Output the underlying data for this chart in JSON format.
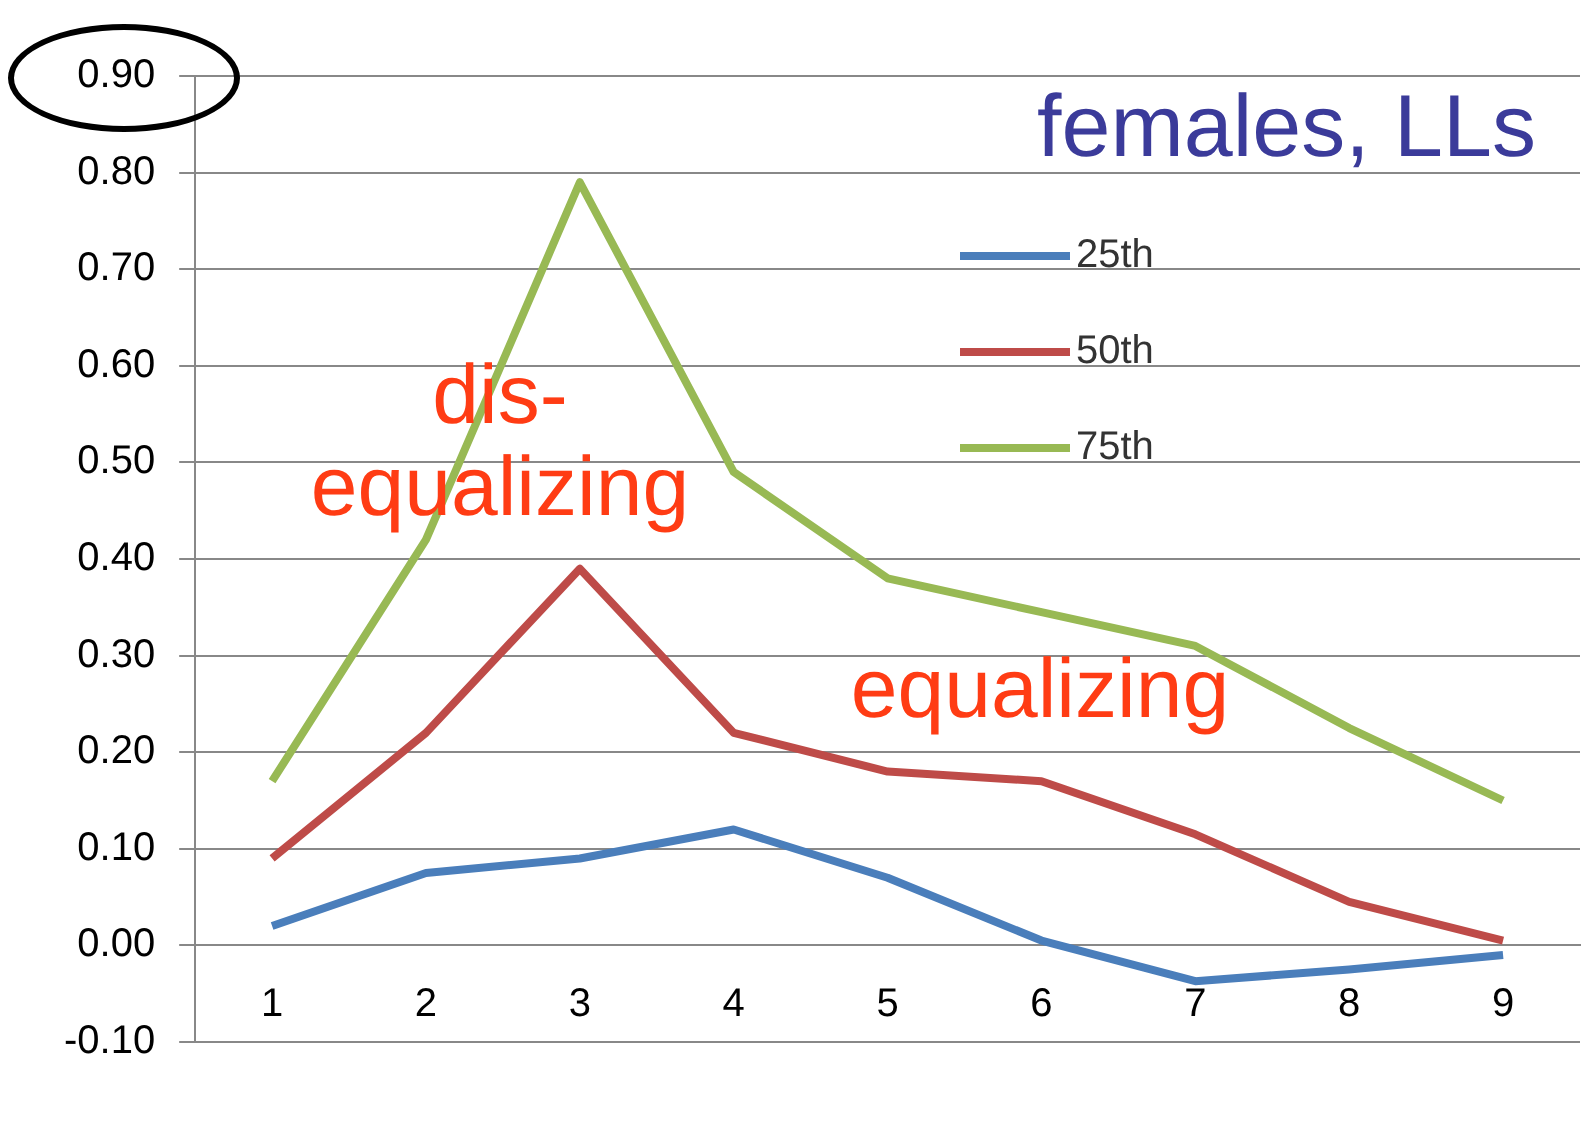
{
  "chart_data": {
    "type": "line",
    "title": "females, LLs",
    "categories": [
      "1",
      "2",
      "3",
      "4",
      "5",
      "6",
      "7",
      "8",
      "9"
    ],
    "series": [
      {
        "name": "25th",
        "color": "#4a7ebb",
        "values": [
          0.02,
          0.075,
          0.09,
          0.12,
          0.07,
          0.005,
          -0.037,
          -0.025,
          -0.01
        ]
      },
      {
        "name": "50th",
        "color": "#be4b48",
        "values": [
          0.09,
          0.22,
          0.39,
          0.22,
          0.18,
          0.17,
          0.115,
          0.045,
          0.005
        ]
      },
      {
        "name": "75th",
        "color": "#98b954",
        "values": [
          0.17,
          0.42,
          0.79,
          0.49,
          0.38,
          0.345,
          0.31,
          0.225,
          0.15
        ]
      }
    ],
    "ylim": [
      -0.1,
      0.9
    ],
    "yticks": [
      {
        "value": -0.1,
        "label": "-0.10"
      },
      {
        "value": 0,
        "label": "0.00"
      },
      {
        "value": 0.1,
        "label": "0.10"
      },
      {
        "value": 0.2,
        "label": "0.20"
      },
      {
        "value": 0.3,
        "label": "0.30"
      },
      {
        "value": 0.4,
        "label": "0.40"
      },
      {
        "value": 0.5,
        "label": "0.50"
      },
      {
        "value": 0.6,
        "label": "0.60"
      },
      {
        "value": 0.7,
        "label": "0.70"
      },
      {
        "value": 0.8,
        "label": "0.80"
      },
      {
        "value": 0.9,
        "label": "0.90"
      }
    ],
    "annotations": [
      "dis-\nequalizing",
      "equalizing"
    ],
    "grid": "y",
    "legend": "top right",
    "marker": "none",
    "line_style": "solid"
  }
}
